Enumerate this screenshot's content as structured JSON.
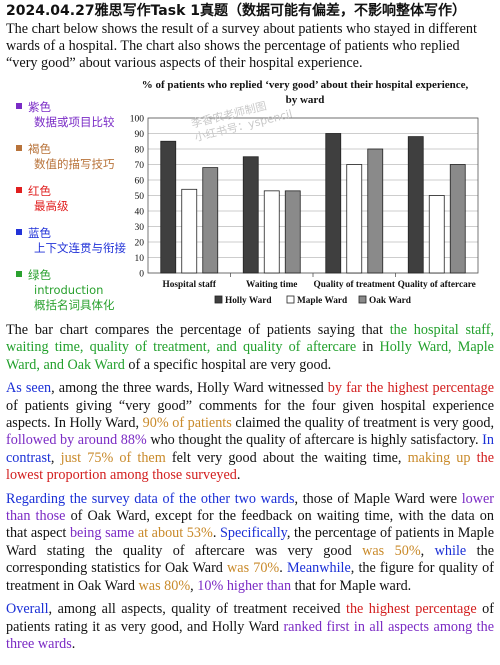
{
  "header": {
    "title": "2024.04.27雅思写作Task 1真题（数据可能有偏差，不影响整体写作）"
  },
  "intro": "The chart below shows the result of a survey about patients who stayed in different wards of a hospital. The chart also shows the percentage of patients who replied “very good” about various aspects of their hospital experience.",
  "legend": [
    {
      "color": "#7a2bc6",
      "name": "紫色",
      "desc": "数据或项目比较"
    },
    {
      "color": "#b8733a",
      "name": "褐色",
      "desc": "数值的描写技巧"
    },
    {
      "color": "#e01f1f",
      "name": "红色",
      "desc": "最高级"
    },
    {
      "color": "#2233d8",
      "name": "蓝色",
      "desc": "上下文连贯与衔接"
    },
    {
      "color": "#2aa12f",
      "name": "绿色",
      "desc": "introduction",
      "desc2": "概括名词具体化"
    }
  ],
  "watermark": {
    "line1": "李香农老师制图",
    "line2": "小红书号：yspencil"
  },
  "chart_data": {
    "type": "bar",
    "title": "% of patients who replied ‘very good’ about their hospital experience, by ward",
    "categories": [
      "Hospital staff",
      "Waiting time",
      "Quality of treatment",
      "Quality of aftercare"
    ],
    "series": [
      {
        "name": "Holly Ward",
        "values": [
          85,
          75,
          90,
          88
        ],
        "color": "#3f3f3f"
      },
      {
        "name": "Maple Ward",
        "values": [
          54,
          53,
          70,
          50
        ],
        "color": "#ffffff"
      },
      {
        "name": "Oak Ward",
        "values": [
          68,
          53,
          80,
          70
        ],
        "color": "#8a8a8a"
      }
    ],
    "ylim": [
      0,
      100
    ],
    "yticks": [
      "0",
      "10",
      "20",
      "30",
      "40",
      "50",
      "60",
      "70",
      "80",
      "90",
      "100"
    ],
    "grid": true,
    "legend_position": "bottom"
  },
  "paragraphs": [
    [
      {
        "t": "The bar chart compares the percentage of patients saying that ",
        "c": ""
      },
      {
        "t": "the hospital staff, waiting time, quality of treatment, and quality of aftercare",
        "c": "c-green"
      },
      {
        "t": " in ",
        "c": ""
      },
      {
        "t": "Holly Ward, Maple Ward, and Oak Ward",
        "c": "c-green"
      },
      {
        "t": " of a specific hospital are very good.",
        "c": ""
      }
    ],
    [
      {
        "t": "As seen",
        "c": "c-blue"
      },
      {
        "t": ", among the three wards, Holly Ward witnessed ",
        "c": ""
      },
      {
        "t": "by far the highest percentage",
        "c": "c-red"
      },
      {
        "t": " of patients giving “very good” comments for the four given hospital experience aspects. In Holly Ward, ",
        "c": ""
      },
      {
        "t": "90% of patients",
        "c": "c-orange"
      },
      {
        "t": " claimed the quality of treatment is very good, ",
        "c": ""
      },
      {
        "t": "followed by around 88%",
        "c": "c-purple"
      },
      {
        "t": " who thought the quality of aftercare is highly satisfactory. ",
        "c": ""
      },
      {
        "t": "In contrast",
        "c": "c-blue"
      },
      {
        "t": ", ",
        "c": ""
      },
      {
        "t": "just 75% of them",
        "c": "c-orange"
      },
      {
        "t": " felt very good about the waiting time, ",
        "c": ""
      },
      {
        "t": "making up",
        "c": "c-orange"
      },
      {
        "t": " ",
        "c": ""
      },
      {
        "t": "the lowest proportion",
        "c": "c-red"
      },
      {
        "t": " ",
        "c": ""
      },
      {
        "t": "among those surveyed",
        "c": "c-red"
      },
      {
        "t": ".",
        "c": ""
      }
    ],
    [
      {
        "t": "Regarding the survey data of the other two wards",
        "c": "c-blue"
      },
      {
        "t": ", those of Maple Ward were ",
        "c": ""
      },
      {
        "t": "lower than those",
        "c": "c-purple"
      },
      {
        "t": " of Oak Ward, except for the feedback on waiting time, with the data on that aspect ",
        "c": ""
      },
      {
        "t": "being same",
        "c": "c-purple"
      },
      {
        "t": " ",
        "c": ""
      },
      {
        "t": "at about 53%",
        "c": "c-orange"
      },
      {
        "t": ". ",
        "c": ""
      },
      {
        "t": "Specifically",
        "c": "c-blue"
      },
      {
        "t": ", the percentage of patients in Maple Ward stating the quality of aftercare was very good ",
        "c": ""
      },
      {
        "t": "was 50%",
        "c": "c-orange"
      },
      {
        "t": ", ",
        "c": ""
      },
      {
        "t": "while",
        "c": "c-blue"
      },
      {
        "t": " the corresponding statistics for Oak Ward ",
        "c": ""
      },
      {
        "t": "was 70%",
        "c": "c-orange"
      },
      {
        "t": ". ",
        "c": ""
      },
      {
        "t": "Meanwhile",
        "c": "c-blue"
      },
      {
        "t": ", the figure for quality of treatment in Oak Ward ",
        "c": ""
      },
      {
        "t": "was 80%",
        "c": "c-orange"
      },
      {
        "t": ", ",
        "c": ""
      },
      {
        "t": "10% higher than",
        "c": "c-purple"
      },
      {
        "t": " that for Maple ward.",
        "c": ""
      }
    ],
    [
      {
        "t": "Overall",
        "c": "c-blue"
      },
      {
        "t": ", among all aspects, quality of treatment received ",
        "c": ""
      },
      {
        "t": "the highest percentage",
        "c": "c-red"
      },
      {
        "t": " of patients rating it as very good, and Holly Ward ",
        "c": ""
      },
      {
        "t": "ranked first in all aspects among the three wards",
        "c": "c-purple"
      },
      {
        "t": ".",
        "c": ""
      }
    ]
  ]
}
